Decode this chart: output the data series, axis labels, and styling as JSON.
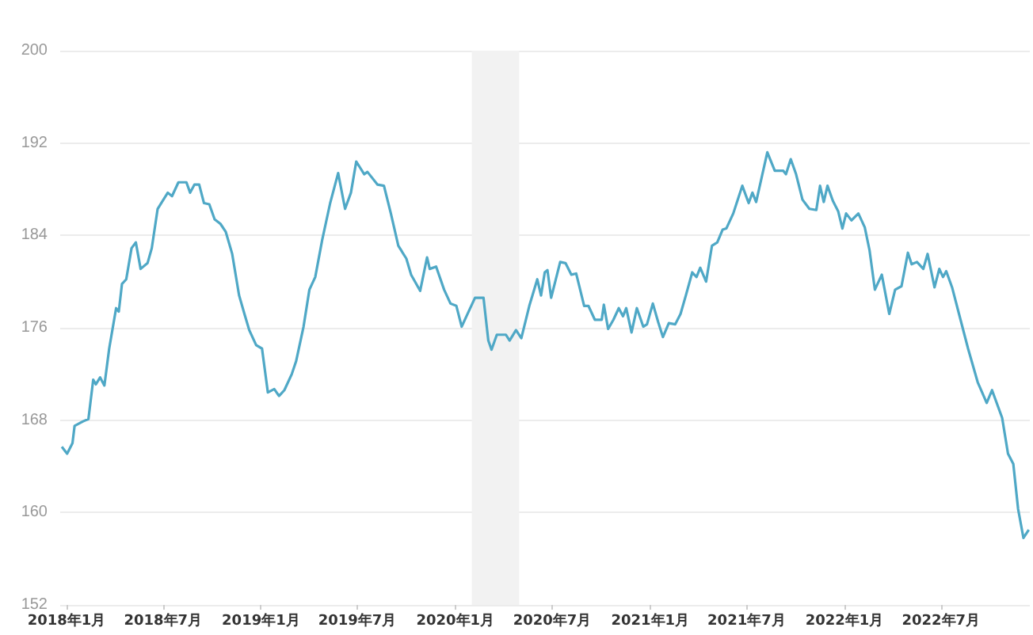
{
  "chart_data": {
    "type": "line",
    "x": [
      "2017-12-23",
      "2018-01-02",
      "2018-01-12",
      "2018-01-16",
      "2018-02-01",
      "2018-02-11",
      "2018-02-20",
      "2018-02-25",
      "2018-03-05",
      "2018-03-13",
      "2018-03-22",
      "2018-04-04",
      "2018-04-09",
      "2018-04-15",
      "2018-04-23",
      "2018-05-03",
      "2018-05-11",
      "2018-05-20",
      "2018-06-02",
      "2018-06-10",
      "2018-06-21",
      "2018-07-10",
      "2018-07-18",
      "2018-07-30",
      "2018-08-14",
      "2018-08-21",
      "2018-08-29",
      "2018-09-07",
      "2018-09-16",
      "2018-09-26",
      "2018-10-06",
      "2018-10-17",
      "2018-10-27",
      "2018-11-08",
      "2018-11-21",
      "2018-12-01",
      "2018-12-10",
      "2018-12-23",
      "2019-01-03",
      "2019-01-14",
      "2019-01-26",
      "2019-02-04",
      "2019-02-14",
      "2019-02-28",
      "2019-03-08",
      "2019-03-22",
      "2019-04-02",
      "2019-04-13",
      "2019-04-26",
      "2019-05-11",
      "2019-05-26",
      "2019-06-08",
      "2019-06-19",
      "2019-06-29",
      "2019-07-14",
      "2019-07-20",
      "2019-08-08",
      "2019-08-20",
      "2019-09-02",
      "2019-09-16",
      "2019-10-01",
      "2019-10-10",
      "2019-10-27",
      "2019-11-09",
      "2019-11-14",
      "2019-11-26",
      "2019-12-11",
      "2019-12-23",
      "2020-01-03",
      "2020-01-13",
      "2020-01-22",
      "2020-02-07",
      "2020-02-23",
      "2020-03-03",
      "2020-03-09",
      "2020-03-19",
      "2020-04-05",
      "2020-04-12",
      "2020-04-24",
      "2020-05-04",
      "2020-05-19",
      "2020-06-03",
      "2020-06-10",
      "2020-06-17",
      "2020-06-22",
      "2020-06-29",
      "2020-07-16",
      "2020-07-26",
      "2020-08-06",
      "2020-08-15",
      "2020-08-30",
      "2020-09-07",
      "2020-09-19",
      "2020-10-02",
      "2020-10-06",
      "2020-10-14",
      "2020-10-24",
      "2020-11-03",
      "2020-11-11",
      "2020-11-17",
      "2020-11-27",
      "2020-12-07",
      "2020-12-19",
      "2020-12-26",
      "2021-01-06",
      "2021-01-16",
      "2021-01-25",
      "2021-02-05",
      "2021-02-17",
      "2021-02-27",
      "2021-03-09",
      "2021-03-21",
      "2021-03-29",
      "2021-04-05",
      "2021-04-16",
      "2021-04-27",
      "2021-05-07",
      "2021-05-17",
      "2021-05-24",
      "2021-06-06",
      "2021-06-23",
      "2021-07-05",
      "2021-07-12",
      "2021-07-19",
      "2021-08-09",
      "2021-08-23",
      "2021-09-08",
      "2021-09-13",
      "2021-09-22",
      "2021-10-02",
      "2021-10-14",
      "2021-10-27",
      "2021-11-09",
      "2021-11-16",
      "2021-11-23",
      "2021-11-30",
      "2021-12-10",
      "2021-12-20",
      "2021-12-28",
      "2022-01-04",
      "2022-01-14",
      "2022-01-27",
      "2022-02-08",
      "2022-02-17",
      "2022-02-27",
      "2022-03-12",
      "2022-03-26",
      "2022-04-06",
      "2022-04-18",
      "2022-04-30",
      "2022-05-07",
      "2022-05-17",
      "2022-05-29",
      "2022-06-06",
      "2022-06-19",
      "2022-06-28",
      "2022-07-05",
      "2022-07-11",
      "2022-07-22",
      "2022-08-04",
      "2022-08-21",
      "2022-09-08",
      "2022-09-25",
      "2022-10-05",
      "2022-10-24",
      "2022-11-04",
      "2022-11-14",
      "2022-11-23",
      "2022-12-03",
      "2022-12-13"
    ],
    "series": [
      {
        "color": "#4fa8c6",
        "values": [
          165.7,
          165.1,
          166.0,
          167.5,
          167.9,
          168.1,
          171.5,
          171.1,
          171.7,
          171.0,
          174.2,
          177.7,
          177.4,
          179.8,
          180.2,
          182.9,
          183.4,
          181.1,
          181.6,
          182.9,
          186.3,
          187.7,
          187.4,
          188.6,
          188.6,
          187.7,
          188.4,
          188.4,
          186.8,
          186.7,
          185.4,
          185.0,
          184.3,
          182.4,
          178.8,
          177.2,
          175.8,
          174.5,
          174.2,
          170.4,
          170.7,
          170.1,
          170.6,
          172.0,
          173.1,
          176.1,
          179.3,
          180.4,
          183.6,
          186.8,
          189.4,
          186.3,
          187.7,
          190.4,
          189.3,
          189.5,
          188.4,
          188.3,
          185.9,
          183.1,
          182.0,
          180.6,
          179.2,
          182.1,
          181.1,
          181.3,
          179.3,
          178.1,
          177.9,
          176.1,
          177.0,
          178.6,
          178.6,
          174.9,
          174.1,
          175.4,
          175.4,
          174.9,
          175.8,
          175.1,
          177.9,
          180.2,
          178.8,
          180.8,
          181.0,
          178.6,
          181.7,
          181.6,
          180.6,
          180.7,
          177.9,
          177.9,
          176.7,
          176.7,
          178.0,
          175.9,
          176.7,
          177.7,
          177.0,
          177.7,
          175.6,
          177.7,
          176.1,
          176.3,
          178.1,
          176.5,
          175.2,
          176.4,
          176.3,
          177.2,
          178.8,
          180.8,
          180.4,
          181.2,
          180.0,
          183.1,
          183.4,
          184.5,
          184.6,
          185.9,
          188.3,
          186.8,
          187.7,
          186.9,
          191.2,
          189.6,
          189.6,
          189.3,
          190.6,
          189.3,
          187.1,
          186.3,
          186.2,
          188.3,
          186.9,
          188.3,
          187.0,
          186.1,
          184.6,
          185.9,
          185.3,
          185.9,
          184.7,
          182.7,
          179.3,
          180.6,
          177.2,
          179.3,
          179.6,
          182.5,
          181.5,
          181.7,
          181.1,
          182.4,
          179.5,
          181.1,
          180.4,
          180.9,
          179.5,
          177.2,
          174.2,
          171.3,
          169.5,
          170.6,
          168.2,
          165.1,
          164.2,
          160.3,
          157.8,
          158.5
        ]
      }
    ],
    "xlim": [
      "2017-12-20",
      "2022-12-15"
    ],
    "xticks": [
      {
        "value": "2018-01-01",
        "label": "2018年1月"
      },
      {
        "value": "2018-07-01",
        "label": "2018年7月"
      },
      {
        "value": "2019-01-01",
        "label": "2019年1月"
      },
      {
        "value": "2019-07-01",
        "label": "2019年7月"
      },
      {
        "value": "2020-01-01",
        "label": "2020年1月"
      },
      {
        "value": "2020-07-01",
        "label": "2020年7月"
      },
      {
        "value": "2021-01-01",
        "label": "2021年1月"
      },
      {
        "value": "2021-07-01",
        "label": "2021年7月"
      },
      {
        "value": "2022-01-01",
        "label": "2022年1月"
      },
      {
        "value": "2022-07-01",
        "label": "2022年7月"
      }
    ],
    "ylim": [
      152,
      200
    ],
    "yticks": [
      152,
      160,
      168,
      176,
      184,
      192,
      200
    ],
    "grid": "y",
    "bands": [
      {
        "axis": "x",
        "from": "2020-02-01",
        "to": "2020-04-30",
        "color": "#f2f2f2"
      }
    ]
  }
}
